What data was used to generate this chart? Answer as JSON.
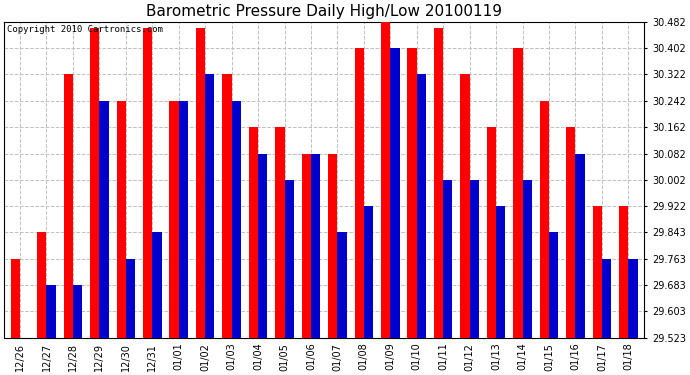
{
  "title": "Barometric Pressure Daily High/Low 20100119",
  "copyright": "Copyright 2010 Cartronics.com",
  "categories": [
    "12/26",
    "12/27",
    "12/28",
    "12/29",
    "12/30",
    "12/31",
    "01/01",
    "01/02",
    "01/03",
    "01/04",
    "01/05",
    "01/06",
    "01/07",
    "01/08",
    "01/09",
    "01/10",
    "01/11",
    "01/12",
    "01/13",
    "01/14",
    "01/15",
    "01/16",
    "01/17",
    "01/18"
  ],
  "highs": [
    29.763,
    29.843,
    30.322,
    30.462,
    30.242,
    30.462,
    30.242,
    30.462,
    30.322,
    30.162,
    30.162,
    30.082,
    30.082,
    30.402,
    30.482,
    30.402,
    30.462,
    30.322,
    30.162,
    30.402,
    30.242,
    30.162,
    29.922,
    29.922
  ],
  "lows": [
    29.523,
    29.683,
    29.683,
    30.242,
    29.763,
    29.843,
    30.242,
    30.322,
    30.242,
    30.082,
    30.002,
    30.082,
    29.843,
    29.922,
    30.402,
    30.322,
    30.002,
    30.002,
    29.922,
    30.002,
    29.843,
    30.082,
    29.763,
    29.763
  ],
  "high_color": "#ff0000",
  "low_color": "#0000cc",
  "bg_color": "#ffffff",
  "grid_color": "#c0c0c0",
  "ymin": 29.523,
  "ymax": 30.482,
  "ytick_values": [
    29.523,
    29.603,
    29.683,
    29.763,
    29.843,
    29.922,
    30.002,
    30.082,
    30.162,
    30.242,
    30.322,
    30.402,
    30.482
  ],
  "ytick_labels": [
    "29.523",
    "29.603",
    "29.683",
    "29.763",
    "29.843",
    "29.922",
    "30.002",
    "30.082",
    "30.162",
    "30.242",
    "30.322",
    "30.402",
    "30.482"
  ],
  "title_fontsize": 11,
  "copyright_fontsize": 6.5,
  "tick_fontsize": 7,
  "bar_width": 0.35,
  "figwidth": 6.9,
  "figheight": 3.75
}
